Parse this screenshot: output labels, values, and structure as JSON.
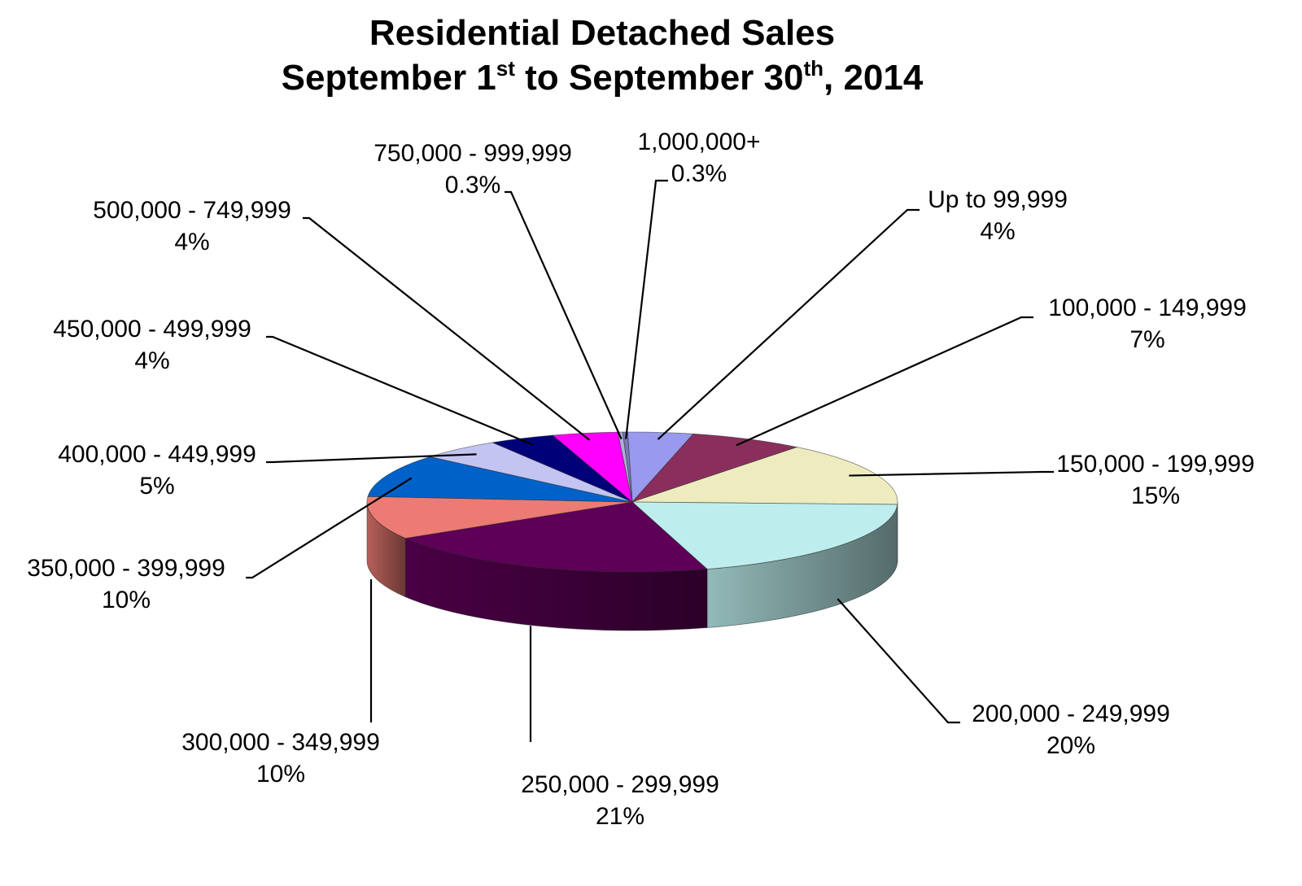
{
  "chart_data": {
    "type": "pie",
    "style": "3d",
    "title_line1": "Residential Detached Sales",
    "title_line2": {
      "a": "September 1",
      "a_sup": "st",
      "b": " to September 30",
      "b_sup": "th",
      "c": ", 2014"
    },
    "slices": [
      {
        "label": "Up to 99,999",
        "value_label": "4%",
        "value": 4,
        "color": "#9999ee"
      },
      {
        "label": "100,000 - 149,999",
        "value_label": "7%",
        "value": 7,
        "color": "#8a2f5c"
      },
      {
        "label": "150,000 - 199,999",
        "value_label": "15%",
        "value": 15,
        "color": "#eeecbf"
      },
      {
        "label": "200,000 - 249,999",
        "value_label": "20%",
        "value": 20,
        "color": "#bdeeed"
      },
      {
        "label": "250,000 - 299,999",
        "value_label": "21%",
        "value": 21,
        "color": "#5f0058"
      },
      {
        "label": "300,000 - 349,999",
        "value_label": "10%",
        "value": 10,
        "color": "#ec7b74"
      },
      {
        "label": "350,000 - 399,999",
        "value_label": "10%",
        "value": 10,
        "color": "#0062c8"
      },
      {
        "label": "400,000 - 449,999",
        "value_label": "5%",
        "value": 5,
        "color": "#c4c4f2"
      },
      {
        "label": "450,000 - 499,999",
        "value_label": "4%",
        "value": 4,
        "color": "#000078"
      },
      {
        "label": "500,000 - 749,999",
        "value_label": "4%",
        "value": 4,
        "color": "#ff00ff"
      },
      {
        "label": "750,000 - 999,999",
        "value_label": "0.3%",
        "value": 0.3,
        "color": "#b0b0d8"
      },
      {
        "label": "1,000,000+",
        "value_label": "0.3%",
        "value": 0.3,
        "color": "#7878b8"
      }
    ],
    "legend": "none"
  }
}
